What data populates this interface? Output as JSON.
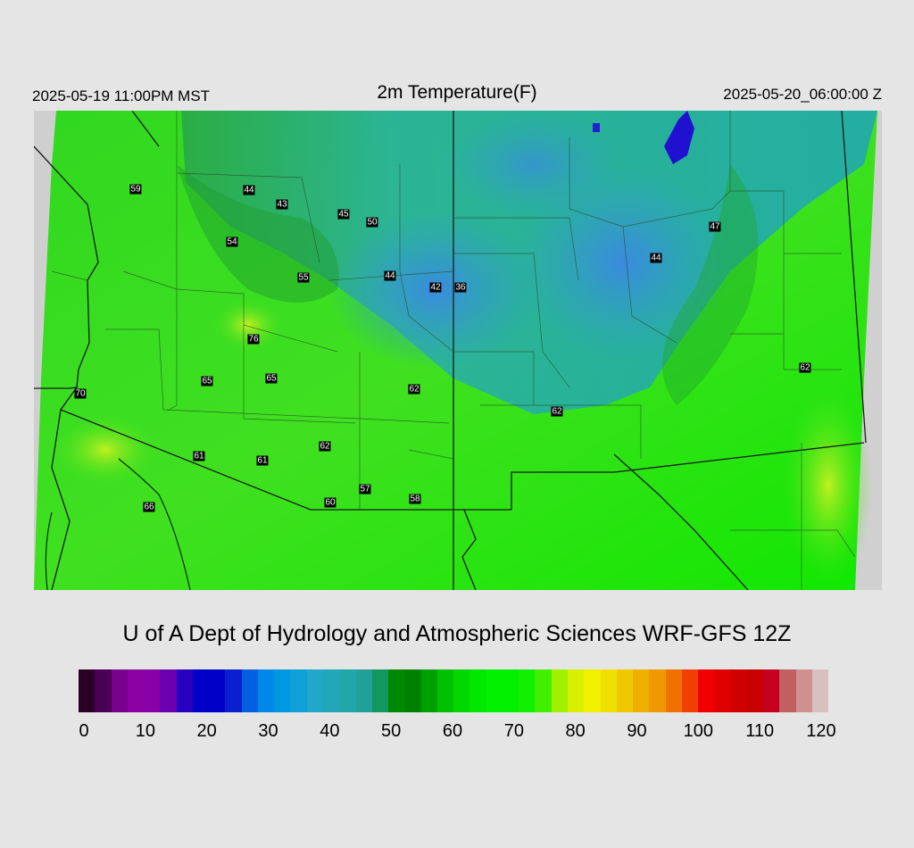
{
  "header": {
    "local_time": "2025-05-19 11:00PM MST",
    "title": "2m Temperature(F)",
    "valid_time": "2025-05-20_06:00:00 Z"
  },
  "map": {
    "variable": "2m temperature",
    "units": "F",
    "station_values": [
      {
        "label": "59"
      },
      {
        "label": "44"
      },
      {
        "label": "43"
      },
      {
        "label": "45"
      },
      {
        "label": "50"
      },
      {
        "label": "54"
      },
      {
        "label": "55"
      },
      {
        "label": "44"
      },
      {
        "label": "42"
      },
      {
        "label": "36"
      },
      {
        "label": "47"
      },
      {
        "label": "44"
      },
      {
        "label": "76"
      },
      {
        "label": "65"
      },
      {
        "label": "65"
      },
      {
        "label": "62"
      },
      {
        "label": "70"
      },
      {
        "label": "62"
      },
      {
        "label": "62"
      },
      {
        "label": "61"
      },
      {
        "label": "61"
      },
      {
        "label": "62"
      },
      {
        "label": "57"
      },
      {
        "label": "58"
      },
      {
        "label": "60"
      },
      {
        "label": "66"
      }
    ]
  },
  "credit": "U of A Dept of Hydrology and Atmospheric Sciences WRF-GFS 12Z",
  "colorbar": {
    "ticks": [
      "0",
      "10",
      "20",
      "30",
      "40",
      "50",
      "60",
      "70",
      "80",
      "90",
      "100",
      "110",
      "120"
    ],
    "colors": [
      "#2a0025",
      "#4a0055",
      "#7a0090",
      "#8a00a0",
      "#8800a8",
      "#6a00b0",
      "#2800c0",
      "#0000c8",
      "#0000c8",
      "#0a20d0",
      "#0060e0",
      "#0088e8",
      "#0098e0",
      "#10a0d8",
      "#20a8c8",
      "#20a8b8",
      "#20a8a8",
      "#20a098",
      "#109860",
      "#008800",
      "#008000",
      "#00a000",
      "#00c000",
      "#00d800",
      "#00e800",
      "#00f000",
      "#00f000",
      "#10f000",
      "#40f000",
      "#a0f000",
      "#d8f000",
      "#f0f000",
      "#f0e000",
      "#f0c800",
      "#f0b000",
      "#f09800",
      "#f07000",
      "#f04000",
      "#f00000",
      "#e00000",
      "#d00000",
      "#c80000",
      "#c80020",
      "#c06060",
      "#d09090",
      "#d8c0c0"
    ]
  }
}
